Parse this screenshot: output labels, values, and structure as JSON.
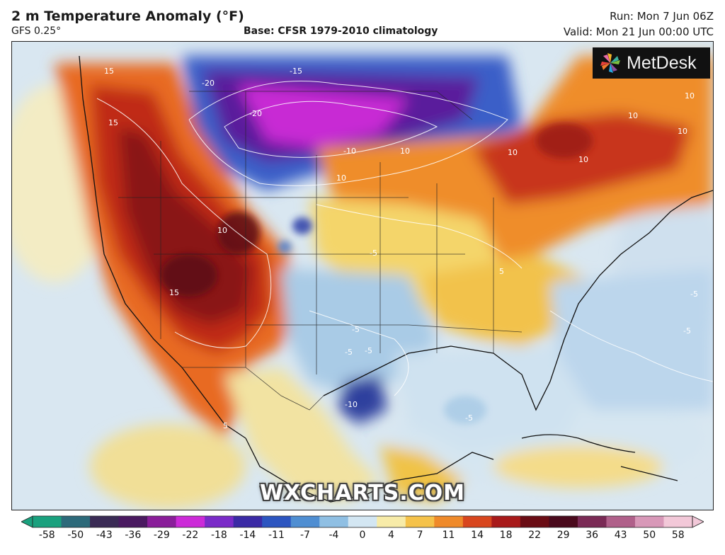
{
  "header": {
    "title": "2 m Temperature Anomaly (°F)",
    "model": "GFS 0.25°",
    "base": "Base: CFSR 1979-2010 climatology",
    "run": "Run: Mon 7 Jun 06Z",
    "valid": "Valid: Mon 21 Jun 00:00 UTC"
  },
  "logo": {
    "text": "MetDesk",
    "icon": "pinwheel-logo-icon"
  },
  "watermark": "WXCHARTS.COM",
  "colorbar": {
    "labels": [
      "-58",
      "-50",
      "-43",
      "-36",
      "-29",
      "-22",
      "-18",
      "-14",
      "-11",
      "-7",
      "-4",
      "0",
      "4",
      "7",
      "11",
      "14",
      "18",
      "22",
      "29",
      "36",
      "43",
      "50",
      "58"
    ],
    "colors": [
      "#1aa17e",
      "#2d6a7a",
      "#3a2b55",
      "#4a1a60",
      "#8a1e9a",
      "#cc2ad8",
      "#7a2bc8",
      "#3b2aa5",
      "#2c55c0",
      "#4f8ed2",
      "#8fbfe3",
      "#d3e6f2",
      "#f7eba8",
      "#f5c24a",
      "#ef8a2a",
      "#d8461e",
      "#a81a1a",
      "#6a0c14",
      "#4a0a1c",
      "#7a2a55",
      "#b0608a",
      "#d898b8",
      "#f2c8d8"
    ]
  },
  "map_labels": [
    {
      "text": "-15"
    },
    {
      "text": "-20"
    },
    {
      "text": "-20"
    },
    {
      "text": "-10"
    },
    {
      "text": "10"
    },
    {
      "text": "10"
    },
    {
      "text": "10"
    },
    {
      "text": "10"
    },
    {
      "text": "15"
    },
    {
      "text": "15"
    },
    {
      "text": "15"
    },
    {
      "text": "10"
    },
    {
      "text": "-5"
    },
    {
      "text": "-5"
    },
    {
      "text": "-5"
    },
    {
      "text": "-5"
    },
    {
      "text": "-5"
    },
    {
      "text": "-5"
    },
    {
      "text": "5"
    },
    {
      "text": "5"
    },
    {
      "text": "10"
    },
    {
      "text": "-10"
    },
    {
      "text": "-5"
    },
    {
      "text": "10"
    },
    {
      "text": "10"
    }
  ]
}
